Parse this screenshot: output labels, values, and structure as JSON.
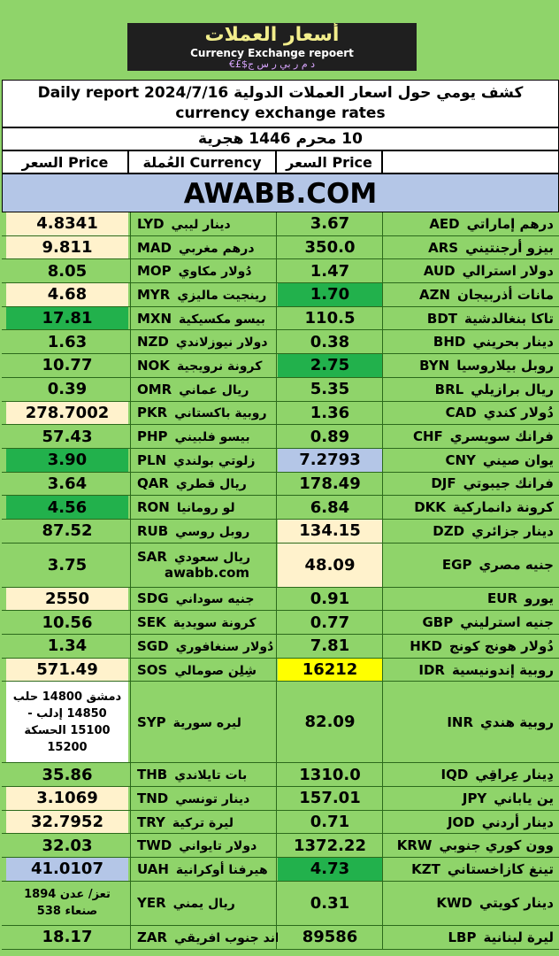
{
  "banner": {
    "arabic": "أسعار العملات",
    "english": "Currency Exchange repoert",
    "symbols": "€£$د م ر بي ر س ج"
  },
  "title": {
    "line1": "كشف يومي حول اسعار العملات الدولية Daily report 2024/7/16",
    "line2": "currency exchange rates"
  },
  "hijri": "10 محرم 1446 هجرية",
  "headers": {
    "price_left": "السعر Price",
    "currency": "العُملة Currency",
    "price_right": "السعر Price"
  },
  "site": "AWABB.COM",
  "colors": {
    "green": "#8fd46a",
    "cream": "#fff2cc",
    "dark_green": "#22b14c",
    "blue": "#b4c6e7",
    "yellow": "#ffff00",
    "white": "#ffffff"
  },
  "rows": [
    {
      "lp": "4.8341",
      "lpc": "cream",
      "lname": "دينار ليبي",
      "lcode": "LYD",
      "rp": "3.67",
      "rpc": "green",
      "rname": "درهم إماراتي",
      "rcode": "AED"
    },
    {
      "lp": "9.811",
      "lpc": "cream",
      "lname": "درهم مغربي",
      "lcode": "MAD",
      "rp": "350.0",
      "rpc": "green",
      "rname": "بيزو أرجنتيني",
      "rcode": "ARS"
    },
    {
      "lp": "8.05",
      "lpc": "green",
      "lname": "دُولار مكاوي",
      "lcode": "MOP",
      "rp": "1.47",
      "rpc": "green",
      "rname": "دولار استرالي",
      "rcode": "AUD"
    },
    {
      "lp": "4.68",
      "lpc": "cream",
      "lname": "رينجيت ماليزي",
      "lcode": "MYR",
      "rp": "1.70",
      "rpc": "dark_green",
      "rname": "مانات أذربيجان",
      "rcode": "AZN"
    },
    {
      "lp": "17.81",
      "lpc": "dark_green",
      "lname": "بيسو مكسيكية",
      "lcode": "MXN",
      "rp": "110.5",
      "rpc": "green",
      "rname": "تاكا بنغالدشية",
      "rcode": "BDT"
    },
    {
      "lp": "1.63",
      "lpc": "green",
      "lname": "دولار نيوزلاندي",
      "lcode": "NZD",
      "rp": "0.38",
      "rpc": "green",
      "rname": "دينار بحريني",
      "rcode": "BHD"
    },
    {
      "lp": "10.77",
      "lpc": "green",
      "lname": "كرونة نرويجية",
      "lcode": "NOK",
      "rp": "2.75",
      "rpc": "dark_green",
      "rname": "روبل بيلاروسيا",
      "rcode": "BYN"
    },
    {
      "lp": "0.39",
      "lpc": "green",
      "lname": "ريال عماني",
      "lcode": "OMR",
      "rp": "5.35",
      "rpc": "green",
      "rname": "ريال برازيلي",
      "rcode": "BRL"
    },
    {
      "lp": "278.7002",
      "lpc": "cream",
      "lname": "روبية باكستاني",
      "lcode": "PKR",
      "rp": "1.36",
      "rpc": "green",
      "rname": "دُولار كندي",
      "rcode": "CAD"
    },
    {
      "lp": "57.43",
      "lpc": "green",
      "lname": "بيسو فلبيني",
      "lcode": "PHP",
      "rp": "0.89",
      "rpc": "green",
      "rname": "فرانك سويسري",
      "rcode": "CHF"
    },
    {
      "lp": "3.90",
      "lpc": "dark_green",
      "lname": "زلوتي بولندي",
      "lcode": "PLN",
      "rp": "7.2793",
      "rpc": "blue",
      "rname": "يوان صيني",
      "rcode": "CNY"
    },
    {
      "lp": "3.64",
      "lpc": "green",
      "lname": "ريال قطري",
      "lcode": "QAR",
      "rp": "178.49",
      "rpc": "green",
      "rname": "فرانك جيبوتي",
      "rcode": "DJF"
    },
    {
      "lp": "4.56",
      "lpc": "dark_green",
      "lname": "لو رومانيا",
      "lcode": "RON",
      "rp": "6.84",
      "rpc": "green",
      "rname": "كرونة دانماركية",
      "rcode": "DKK"
    },
    {
      "lp": "87.52",
      "lpc": "green",
      "lname": "روبل روسي",
      "lcode": "RUB",
      "rp": "134.15",
      "rpc": "cream",
      "rname": "دينار جزائري",
      "rcode": "DZD"
    },
    {
      "lp": "3.75",
      "lpc": "green",
      "lname": "ريال سعودي",
      "lcode": "SAR",
      "lextra": "awabb.com",
      "rp": "48.09",
      "rpc": "cream",
      "rname": "جنيه مصري",
      "rcode": "EGP",
      "tall": true
    },
    {
      "lp": "2550",
      "lpc": "cream",
      "lname": "جنيه سوداني",
      "lcode": "SDG",
      "rp": "0.91",
      "rpc": "green",
      "rname": "يورو",
      "rcode": "EUR"
    },
    {
      "lp": "10.56",
      "lpc": "green",
      "lname": "كرونة سويدية",
      "lcode": "SEK",
      "rp": "0.77",
      "rpc": "green",
      "rname": "جنيه استرليني",
      "rcode": "GBP"
    },
    {
      "lp": "1.34",
      "lpc": "green",
      "lname": "دُولار سنغافوري",
      "lcode": "SGD",
      "rp": "7.81",
      "rpc": "green",
      "rname": "دُولار هونج كونج",
      "rcode": "HKD"
    },
    {
      "lp": "571.49",
      "lpc": "cream",
      "lname": "شِلِن صومالي",
      "lcode": "SOS",
      "rp": "16212",
      "rpc": "yellow",
      "rname": "روبية إندونيسية",
      "rcode": "IDR"
    },
    {
      "lp": "",
      "lpc": "white",
      "lmulti": [
        "دمشق 14800 حلب",
        "14850 إدلب -",
        "15100 الحسكة",
        "15200"
      ],
      "lname": "ليره سورية",
      "lcode": "SYP",
      "rp": "82.09",
      "rpc": "green",
      "rname": "روبية هندي",
      "rcode": "INR",
      "xtall": true
    },
    {
      "lp": "35.86",
      "lpc": "green",
      "lname": "بات تايلاندي",
      "lcode": "THB",
      "rp": "1310.0",
      "rpc": "green",
      "rname": "دِينار عِراقِي",
      "rcode": "IQD"
    },
    {
      "lp": "3.1069",
      "lpc": "cream",
      "lname": "دينار تونسي",
      "lcode": "TND",
      "rp": "157.01",
      "rpc": "green",
      "rname": "ين ياباني",
      "rcode": "JPY"
    },
    {
      "lp": "32.7952",
      "lpc": "cream",
      "lname": "ليرة تركية",
      "lcode": "TRY",
      "rp": "0.71",
      "rpc": "green",
      "rname": "دينار أردني",
      "rcode": "JOD"
    },
    {
      "lp": "32.03",
      "lpc": "green",
      "lname": "دولار تايواني",
      "lcode": "TWD",
      "rp": "1372.22",
      "rpc": "green",
      "rname": "وون كوري جنوبي",
      "rcode": "KRW"
    },
    {
      "lp": "41.0107",
      "lpc": "blue",
      "lname": "هيرفنا أوكرانية",
      "lcode": "UAH",
      "rp": "4.73",
      "rpc": "dark_green",
      "rname": "تينغ كازاخستاني",
      "rcode": "KZT"
    },
    {
      "lp": "",
      "lpc": "green",
      "lmulti": [
        "تعز/ عدن 1894",
        "صنعاء 538"
      ],
      "lname": "ريال يمني",
      "lcode": "YER",
      "rp": "0.31",
      "rpc": "green",
      "rname": "دينار كويتي",
      "rcode": "KWD",
      "tall": true
    },
    {
      "lp": "18.17",
      "lpc": "green",
      "lname": "راند جنوب افريقي",
      "lcode": "ZAR",
      "rp": "89586",
      "rpc": "green",
      "rname": "ليرة لبنانية",
      "rcode": "LBP"
    }
  ]
}
